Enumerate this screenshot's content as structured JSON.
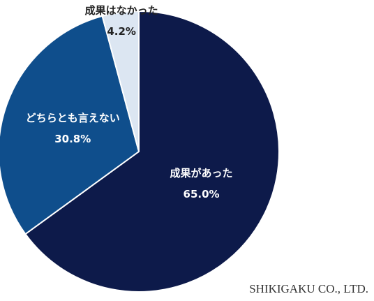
{
  "chart_data": {
    "type": "pie",
    "categories": [
      "成果があった",
      "どちらとも言えない",
      "成果はなかった"
    ],
    "values": [
      65.0,
      30.8,
      4.2
    ],
    "value_labels": [
      "65.0%",
      "30.8%",
      "4.2%"
    ],
    "colors": [
      "#0d1a4a",
      "#0f4e8c",
      "#dce6f2"
    ],
    "watermark": "SHIKIGAKU CO., LTD."
  }
}
